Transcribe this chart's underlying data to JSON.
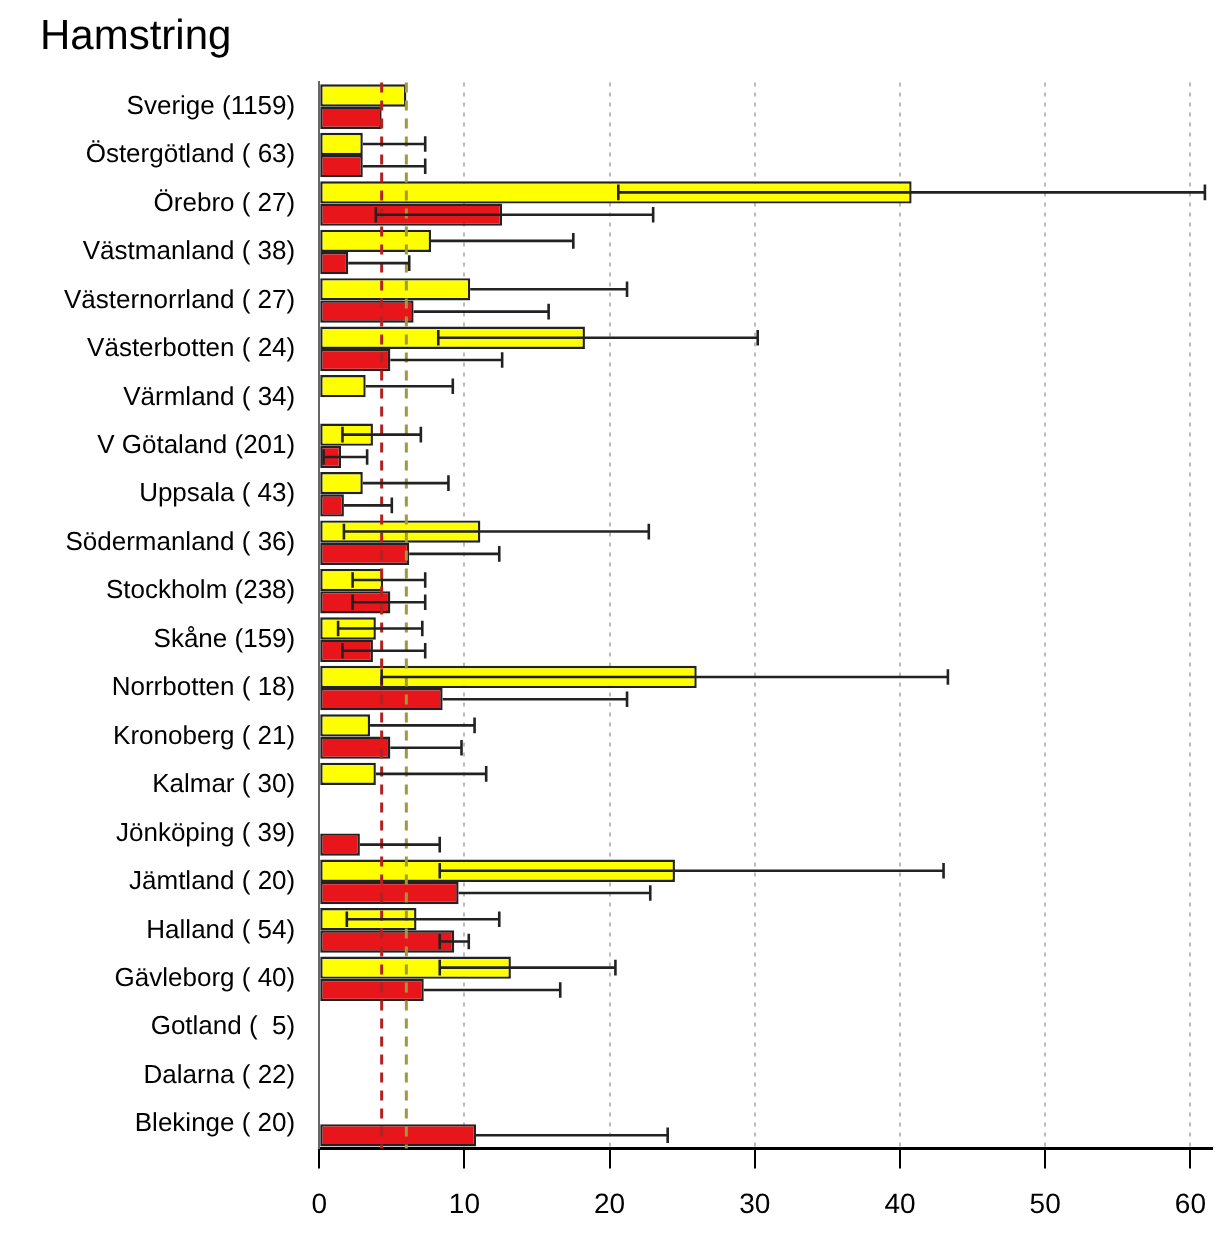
{
  "chart_data": {
    "type": "bar",
    "orientation": "horizontal",
    "title": "Hamstring",
    "categories": [
      "Sverige (1159)",
      "Östergötland ( 63)",
      "Örebro ( 27)",
      "Västmanland ( 38)",
      "Västernorrland ( 27)",
      "Västerbotten ( 24)",
      "Värmland ( 34)",
      "V Götaland (201)",
      "Uppsala ( 43)",
      "Södermanland ( 36)",
      "Stockholm (238)",
      "Skåne (159)",
      "Norrbotten ( 18)",
      "Kronoberg ( 21)",
      "Kalmar ( 30)",
      "Jönköping ( 39)",
      "Jämtland ( 20)",
      "Halland ( 54)",
      "Gävleborg ( 40)",
      "Gotland (  5)",
      "Dalarna ( 22)",
      "Blekinge ( 20)"
    ],
    "series": [
      {
        "color": "#ffff00",
        "values": [
          6.0,
          3.0,
          40.8,
          7.7,
          10.4,
          18.3,
          3.2,
          3.7,
          3.0,
          11.1,
          4.4,
          3.9,
          26.0,
          3.5,
          3.9,
          null,
          24.5,
          6.7,
          13.2,
          null,
          null,
          null
        ],
        "errors": [
          null,
          [
            3.0,
            7.3
          ],
          [
            20.6,
            61.0
          ],
          [
            7.7,
            17.5
          ],
          [
            10.4,
            21.2
          ],
          [
            8.2,
            30.2
          ],
          [
            3.2,
            9.2
          ],
          [
            1.6,
            7.0
          ],
          [
            3.0,
            8.9
          ],
          [
            1.7,
            22.7
          ],
          [
            2.3,
            7.3
          ],
          [
            1.3,
            7.1
          ],
          [
            4.3,
            43.3
          ],
          [
            3.5,
            10.7
          ],
          [
            3.9,
            11.5
          ],
          null,
          [
            8.3,
            43.0
          ],
          [
            1.9,
            12.4
          ],
          [
            8.3,
            20.4
          ],
          null,
          null,
          null
        ]
      },
      {
        "color": "#e8161a",
        "values": [
          4.3,
          3.0,
          12.6,
          2.0,
          6.5,
          4.9,
          null,
          1.5,
          1.7,
          6.2,
          4.9,
          3.7,
          8.5,
          4.9,
          null,
          2.8,
          9.6,
          9.3,
          7.2,
          null,
          null,
          10.8
        ],
        "errors": [
          null,
          [
            3.0,
            7.3
          ],
          [
            3.9,
            23.0
          ],
          [
            2.0,
            6.2
          ],
          [
            6.5,
            15.8
          ],
          [
            4.9,
            12.6
          ],
          null,
          [
            0.3,
            3.3
          ],
          [
            1.7,
            5.0
          ],
          [
            6.2,
            12.4
          ],
          [
            2.3,
            7.3
          ],
          [
            1.6,
            7.3
          ],
          [
            8.5,
            21.2
          ],
          [
            4.9,
            9.8
          ],
          null,
          [
            2.8,
            8.3
          ],
          [
            9.6,
            22.8
          ],
          [
            8.3,
            10.3
          ],
          [
            7.2,
            16.6
          ],
          null,
          null,
          [
            10.8,
            24.0
          ]
        ]
      }
    ],
    "xlim": [
      0,
      61.5
    ],
    "xticks": [
      0,
      10,
      20,
      30,
      40,
      50,
      60
    ],
    "grid": "x",
    "ref_lines": [
      {
        "axis": "x",
        "value": 4.3,
        "color": "#b22222",
        "line_style": "dashed"
      },
      {
        "axis": "x",
        "value": 6.0,
        "color": "#a09a3a",
        "line_style": "dashed"
      }
    ]
  }
}
